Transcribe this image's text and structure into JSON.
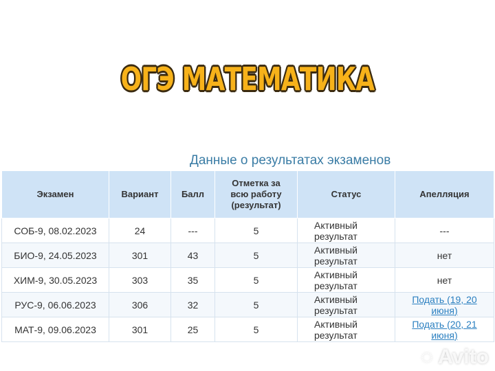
{
  "promo_title": "ОГЭ МАТЕМАТИКА",
  "caption": "Данные о результатах экзаменов",
  "columns": [
    "Экзамен",
    "Вариант",
    "Балл",
    "Отметка за всю работу (результат)",
    "Статус",
    "Апелляция"
  ],
  "rows": [
    {
      "exam": "СОБ-9, 08.02.2023",
      "variant": "24",
      "score": "---",
      "mark": "5",
      "status": "Активный результат",
      "appeal": "---",
      "appeal_link": false
    },
    {
      "exam": "БИО-9, 24.05.2023",
      "variant": "301",
      "score": "43",
      "mark": "5",
      "status": "Активный результат",
      "appeal": "нет",
      "appeal_link": false
    },
    {
      "exam": "ХИМ-9, 30.05.2023",
      "variant": "303",
      "score": "35",
      "mark": "5",
      "status": "Активный результат",
      "appeal": "нет",
      "appeal_link": false
    },
    {
      "exam": "РУС-9, 06.06.2023",
      "variant": "306",
      "score": "32",
      "mark": "5",
      "status": "Активный результат",
      "appeal": "Подать (19, 20 июня)",
      "appeal_link": true
    },
    {
      "exam": "МАТ-9, 09.06.2023",
      "variant": "301",
      "score": "25",
      "mark": "5",
      "status": "Активный результат",
      "appeal": "Подать (20, 21 июня)",
      "appeal_link": true
    }
  ],
  "watermark": "Avito",
  "colors": {
    "header_bg": "#cfe3f6",
    "caption": "#3a7ca5",
    "link": "#2a7fc0",
    "promo": "#f7b21a"
  }
}
